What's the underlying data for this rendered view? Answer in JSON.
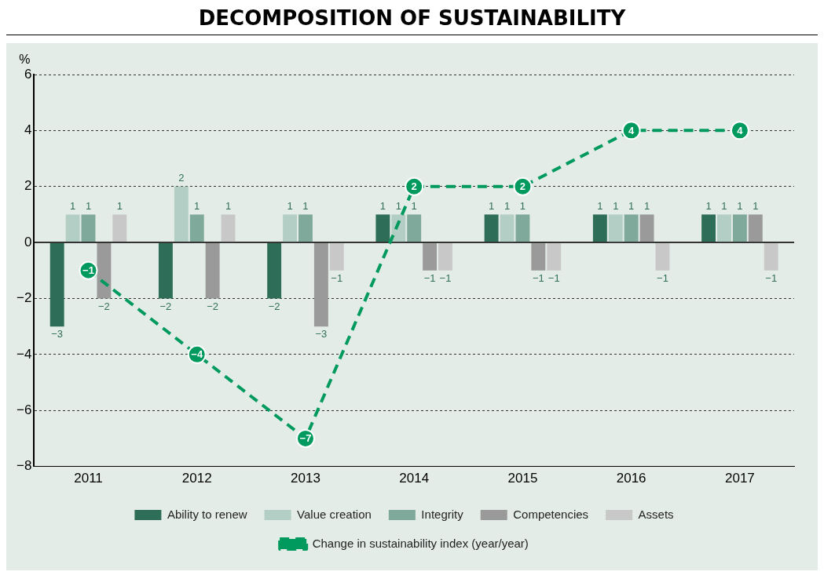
{
  "chart_data": {
    "type": "bar",
    "title": "DECOMPOSITION OF SUSTAINABILITY",
    "ylabel": "%",
    "categories": [
      "2011",
      "2012",
      "2013",
      "2014",
      "2015",
      "2016",
      "2017"
    ],
    "series": [
      {
        "name": "Ability to renew",
        "color": "#2e6e58",
        "values": [
          -3,
          -2,
          -2,
          1,
          1,
          1,
          1
        ],
        "value_labels": [
          "−3",
          "−2",
          "−2",
          "1",
          "1",
          "1",
          "1"
        ]
      },
      {
        "name": "Value creation",
        "color": "#b3cec4",
        "values": [
          1,
          2,
          1,
          1,
          1,
          1,
          1
        ],
        "value_labels": [
          "1",
          "2",
          "1",
          "1",
          "1",
          "1",
          "1"
        ]
      },
      {
        "name": "Integrity",
        "color": "#7fa99a",
        "values": [
          1,
          1,
          1,
          1,
          1,
          1,
          1
        ],
        "value_labels": [
          "1",
          "1",
          "1",
          "1",
          "1",
          "1",
          "1"
        ]
      },
      {
        "name": "Competencies",
        "color": "#9a9a9a",
        "values": [
          -2,
          -2,
          -3,
          -1,
          -1,
          1,
          1
        ],
        "value_labels": [
          "−2",
          "−2",
          "−3",
          "−1",
          "−1",
          "1",
          "1"
        ]
      },
      {
        "name": "Assets",
        "color": "#c8c8c8",
        "values": [
          1,
          1,
          -1,
          -1,
          -1,
          -1,
          -1
        ],
        "value_labels": [
          "1",
          "1",
          "−1",
          "−1",
          "−1",
          "−1",
          "−1"
        ]
      },
      {
        "name": "Change in sustainability index (year/year)",
        "type": "line",
        "color": "#009a5e",
        "line_style": "dashed",
        "marker": "circle",
        "values": [
          -1,
          -4,
          -7,
          2,
          2,
          4,
          4
        ],
        "value_labels": [
          "−1",
          "−4",
          "−7",
          "2",
          "2",
          "4",
          "4"
        ]
      }
    ],
    "ylim": [
      -8,
      6
    ],
    "yticks": [
      {
        "value": -8,
        "label": "−8"
      },
      {
        "value": -6,
        "label": "−6"
      },
      {
        "value": -4,
        "label": "−4"
      },
      {
        "value": -2,
        "label": "−2"
      },
      0,
      2,
      4,
      6
    ],
    "grid": "y",
    "legend": "bottom"
  }
}
